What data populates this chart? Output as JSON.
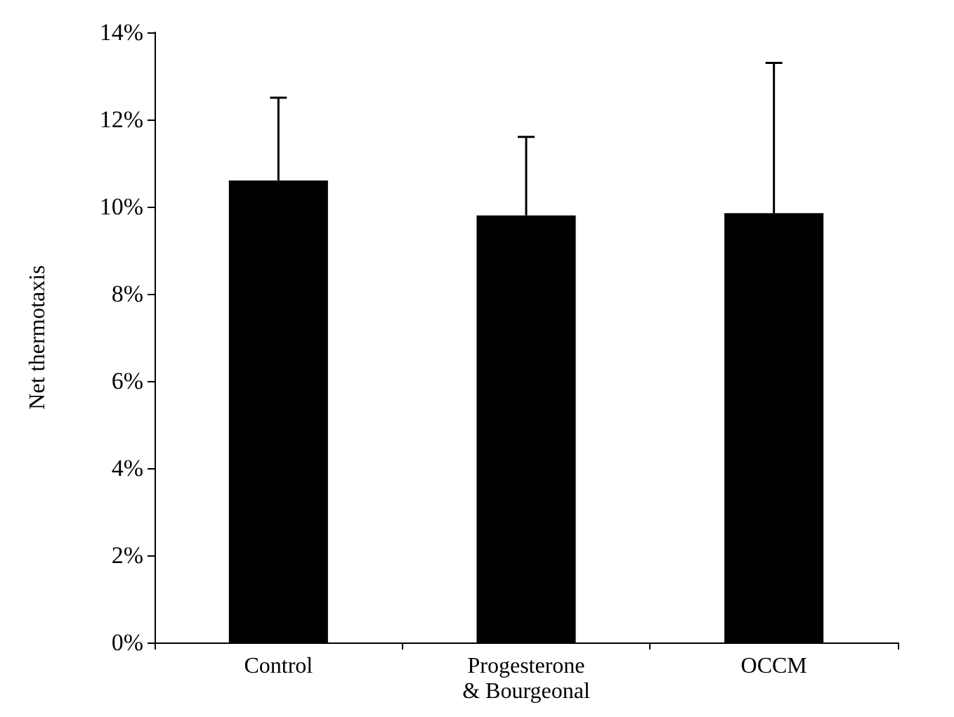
{
  "chart_data": {
    "type": "bar",
    "ylabel": "Net thermotaxis",
    "categories": [
      "Control",
      "Progesterone\n& Bourgeonal",
      "OCCM"
    ],
    "values": [
      10.6,
      9.8,
      9.85
    ],
    "errors": [
      [
        10.6,
        12.5
      ],
      [
        9.8,
        11.6
      ],
      [
        9.85,
        13.3
      ]
    ],
    "color": "#000000",
    "ylim": [
      0,
      14
    ],
    "yticks": [
      {
        "value": 0,
        "label": "0%"
      },
      {
        "value": 2,
        "label": "2%"
      },
      {
        "value": 4,
        "label": "4%"
      },
      {
        "value": 6,
        "label": "6%"
      },
      {
        "value": 8,
        "label": "8%"
      },
      {
        "value": 10,
        "label": "10%"
      },
      {
        "value": 12,
        "label": "12%"
      },
      {
        "value": 14,
        "label": "14%"
      }
    ],
    "grid": false
  }
}
